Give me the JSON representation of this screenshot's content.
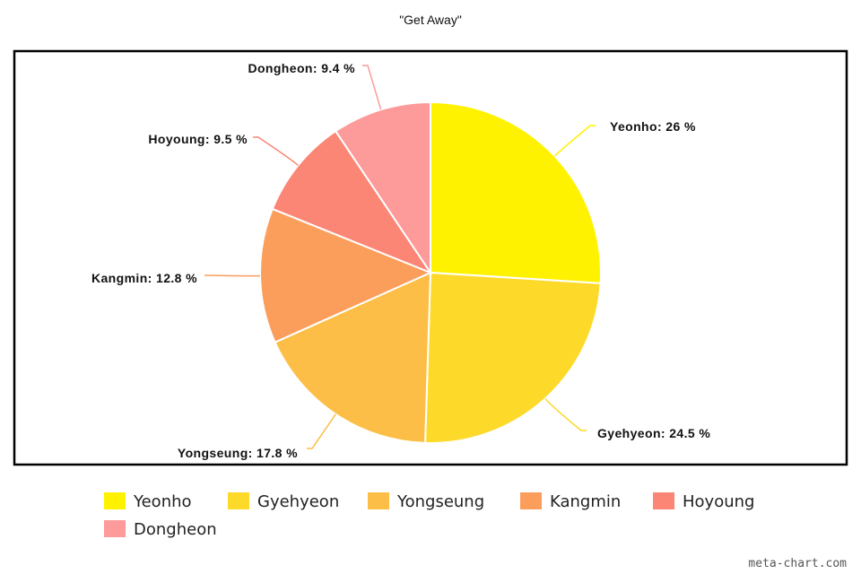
{
  "chart_data": {
    "type": "pie",
    "title": "\"Get Away\"",
    "legend_position": "bottom",
    "slices": [
      {
        "name": "Yeonho",
        "value": 26,
        "label": "Yeonho: 26 %",
        "color": "#FFF200"
      },
      {
        "name": "Gyehyeon",
        "value": 24.5,
        "label": "Gyehyeon: 24.5 %",
        "color": "#FDD92A"
      },
      {
        "name": "Yongseung",
        "value": 17.8,
        "label": "Yongseung: 17.8 %",
        "color": "#FCBE46"
      },
      {
        "name": "Kangmin",
        "value": 12.8,
        "label": "Kangmin: 12.8 %",
        "color": "#FB9E5C"
      },
      {
        "name": "Hoyoung",
        "value": 9.5,
        "label": "Hoyoung: 9.5 %",
        "color": "#FB8675"
      },
      {
        "name": "Dongheon",
        "value": 9.4,
        "label": "Dongheon: 9.4 %",
        "color": "#FC9B9A"
      }
    ]
  },
  "watermark": "meta-chart.com"
}
